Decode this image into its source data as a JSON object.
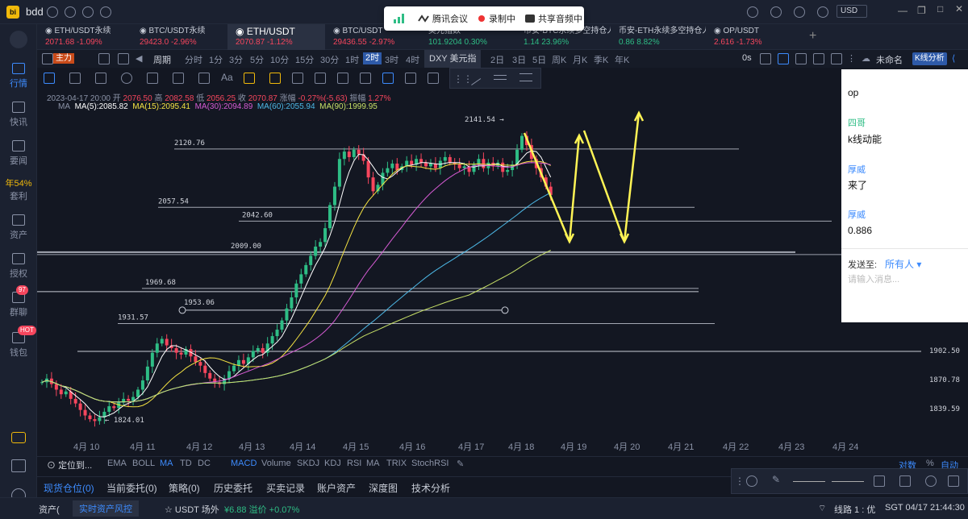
{
  "app": {
    "title": "bdd",
    "currency": "USD"
  },
  "meeting": {
    "app": "腾讯会议",
    "recording": "录制中",
    "share": "共享音频中"
  },
  "tabs": [
    {
      "name": "ETH/USDT永续",
      "price": "2071.68",
      "change": "-1.09%"
    },
    {
      "name": "BTC/USDT永续",
      "price": "29423.0",
      "change": "-2.96%"
    },
    {
      "name": "ETH/USDT",
      "price": "2070.87",
      "change": "-1.12%"
    },
    {
      "name": "BTC/USDT",
      "price": "29436.55",
      "change": "-2.97%"
    },
    {
      "name": "美元指数",
      "price": "101.9204",
      "change": "0.30%"
    },
    {
      "name": "币安-BTC永续多空持仓人",
      "price": "1.14",
      "change": "23.96%"
    },
    {
      "name": "币安-ETH永续多空持仓人",
      "price": "0.86",
      "change": "8.82%"
    },
    {
      "name": "OP/USDT",
      "price": "2.616",
      "change": "-1.73%"
    }
  ],
  "sidebar": [
    {
      "label": "行情"
    },
    {
      "label": "快讯"
    },
    {
      "label": "要闻"
    },
    {
      "label": "年54%"
    },
    {
      "label": "套利"
    },
    {
      "label": "资产"
    },
    {
      "label": "授权"
    },
    {
      "label": "群聊",
      "badge": "97"
    },
    {
      "label": "钱包",
      "badge": "HOT"
    }
  ],
  "toolbar": {
    "main_label": "主力",
    "period_label": "周期",
    "timeframes": [
      "分时",
      "1分",
      "3分",
      "5分",
      "10分",
      "15分",
      "30分",
      "1时",
      "2时",
      "3时",
      "4时"
    ],
    "dxy_label": "DXY 美元指数",
    "timeframes2": [
      "2日",
      "3日",
      "5日",
      "周K",
      "月K",
      "季K",
      "年K"
    ],
    "zero_s": "0s",
    "unnamed": "未命名",
    "kline_analysis": "K线分析"
  },
  "ohlc": {
    "time": "2023-04-17 20:00",
    "open_label": "开",
    "open": "2076.50",
    "high_label": "高",
    "high": "2082.58",
    "low_label": "低",
    "low": "2056.25",
    "close_label": "收",
    "close": "2070.87",
    "change_label": "涨幅",
    "change": "-0.27%(-5.63)",
    "amp_label": "振幅",
    "amp": "1.27%"
  },
  "ma": {
    "label": "MA",
    "ma5": "MA(5):2085.82",
    "ma15": "MA(15):2095.41",
    "ma30": "MA(30):2094.89",
    "ma60": "MA(60):2055.94",
    "ma90": "MA(90):1999.95"
  },
  "chart_data": {
    "type": "candlestick",
    "symbol": "ETH/USDT",
    "interval": "2h",
    "x_ticks": [
      "4月 10",
      "4月 11",
      "4月 12",
      "4月 13",
      "4月 14",
      "4月 15",
      "4月 16",
      "4月 17",
      "4月 18",
      "4月 19",
      "4月 20",
      "4月 21",
      "4月 22",
      "4月 23",
      "4月 24"
    ],
    "y_ticks": [
      "1902.50",
      "1870.78",
      "1839.59"
    ],
    "annotations": [
      "2141.54",
      "1824.01"
    ],
    "horizontal_levels": [
      "2120.76",
      "2057.54",
      "2042.60",
      "2009.00",
      "1969.68",
      "1953.06",
      "1931.57"
    ],
    "close_series": [
      1868,
      1872,
      1866,
      1860,
      1855,
      1858,
      1850,
      1845,
      1838,
      1832,
      1828,
      1826,
      1830,
      1836,
      1842,
      1840,
      1846,
      1850,
      1848,
      1852,
      1860,
      1870,
      1885,
      1900,
      1910,
      1915,
      1908,
      1905,
      1900,
      1898,
      1904,
      1896,
      1890,
      1886,
      1878,
      1872,
      1868,
      1866,
      1872,
      1880,
      1886,
      1892,
      1888,
      1895,
      1902,
      1905,
      1900,
      1910,
      1918,
      1925,
      1935,
      1948,
      1960,
      1975,
      1985,
      1995,
      2005,
      2015,
      2020,
      2035,
      2060,
      2080,
      2110,
      2118,
      2112,
      2120,
      2115,
      2108,
      2090,
      2075,
      2082,
      2095,
      2100,
      2105,
      2098,
      2102,
      2108,
      2104,
      2110,
      2106,
      2102,
      2105,
      2100,
      2108,
      2112,
      2106,
      2104,
      2100,
      2102,
      2096,
      2104,
      2110,
      2100,
      2106,
      2102,
      2106,
      2096,
      2098,
      2104,
      2120,
      2135,
      2125,
      2110,
      2100,
      2090,
      2080,
      2071
    ]
  },
  "indicators": {
    "locate": "定位到...",
    "main": [
      "EMA",
      "BOLL",
      "MA",
      "TD",
      "DC"
    ],
    "sub": [
      "MACD",
      "Volume",
      "SKDJ",
      "KDJ",
      "RSI",
      "MA",
      "TRIX",
      "StochRSI"
    ],
    "scale": [
      "对数",
      "%",
      "自动"
    ]
  },
  "bottom_tabs": [
    "现货仓位(0)",
    "当前委托(0)",
    "策略(0)",
    "历史委托",
    "买卖记录",
    "账户资产",
    "深度图",
    "技术分析"
  ],
  "status": {
    "asset": "资产(",
    "risk": "实时资产风控",
    "usdt": "USDT 场外",
    "usdt_price": "¥6.88",
    "premium": "溢价 +0.07%",
    "line": "线路 1 : 优",
    "time": "SGT 04/17 21:44:30"
  },
  "chat": {
    "messages": [
      {
        "user": "",
        "text": "op"
      },
      {
        "user": "四哥",
        "text": "k线动能"
      },
      {
        "user": "厚威",
        "text": "来了"
      },
      {
        "user": "厚威",
        "text": "0.886"
      }
    ],
    "send_to_label": "发送至:",
    "send_to_value": "所有人",
    "placeholder": "请输入消息..."
  },
  "colors": {
    "up": "#2ebd85",
    "down": "#f6465d",
    "accent": "#3d8bfd",
    "ma5": "#ffffff",
    "ma15": "#f5e342",
    "ma30": "#d65bd4",
    "ma60": "#4cb8e6",
    "ma90": "#c7e067",
    "drawing": "#fff455"
  }
}
